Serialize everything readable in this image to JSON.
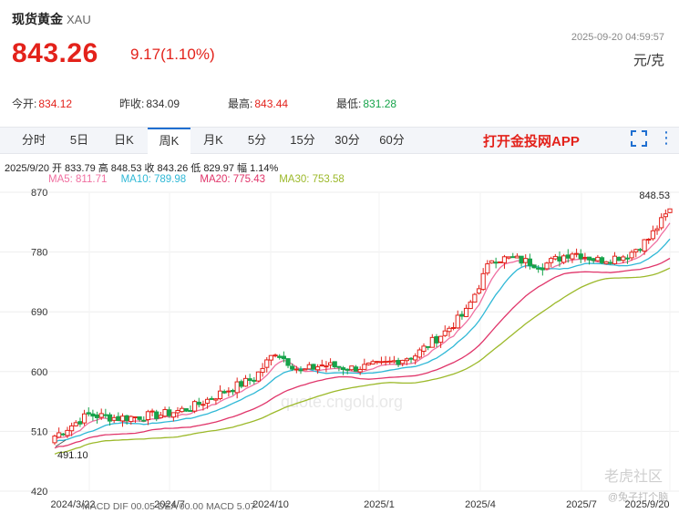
{
  "header": {
    "title": "现货黄金",
    "code": "XAU",
    "price": "843.26",
    "change": "9.17(1.10%)",
    "timestamp": "2025-09-20 04:59:57",
    "unit": "元/克"
  },
  "stats": [
    {
      "label": "今开:",
      "value": "834.12",
      "color": "red"
    },
    {
      "label": "昨收:",
      "value": "834.09",
      "color": "plain"
    },
    {
      "label": "最高:",
      "value": "843.44",
      "color": "red"
    },
    {
      "label": "最低:",
      "value": "831.28",
      "color": "green"
    }
  ],
  "tabs": [
    "分时",
    "5日",
    "日K",
    "周K",
    "月K",
    "5分",
    "15分",
    "30分",
    "60分"
  ],
  "active_tab": "周K",
  "app_link": "打开金投网APP",
  "ohlc_line": "2025/9/20  开 833.79  高 848.53  收 843.26  低 829.97  幅 1.14%",
  "ma_labels": [
    {
      "text": "MA5: 811.71",
      "color": "#f06fa0"
    },
    {
      "text": "MA10: 789.98",
      "color": "#2fb8d6"
    },
    {
      "text": "MA20: 775.43",
      "color": "#e0356a"
    },
    {
      "text": "MA30: 753.58",
      "color": "#9cb92a"
    }
  ],
  "watermarks": {
    "site": "quote.cngold.org",
    "community": "老虎社区",
    "user": "@兔子打个脑"
  },
  "footer_partial": "MACD DIF 00.05   DEA 00.00   MACD 5.07",
  "chart_data": {
    "type": "candlestick",
    "title": "",
    "y_ticks": [
      870,
      780,
      690,
      600,
      510,
      420
    ],
    "ylim": [
      420,
      870
    ],
    "x_tick_labels": [
      "2024/3/22",
      "2024/7",
      "2024/10",
      "2025/1",
      "2025/4",
      "2025/7",
      "2025/9/20"
    ],
    "max_label": "848.53",
    "min_label": "491.10",
    "colors": {
      "up": "#e3221b",
      "down": "#16a34a"
    },
    "series": [
      {
        "name": "MA5",
        "color": "#f06fa0"
      },
      {
        "name": "MA10",
        "color": "#2fb8d6"
      },
      {
        "name": "MA20",
        "color": "#e0356a"
      },
      {
        "name": "MA30",
        "color": "#9cb92a"
      }
    ]
  }
}
